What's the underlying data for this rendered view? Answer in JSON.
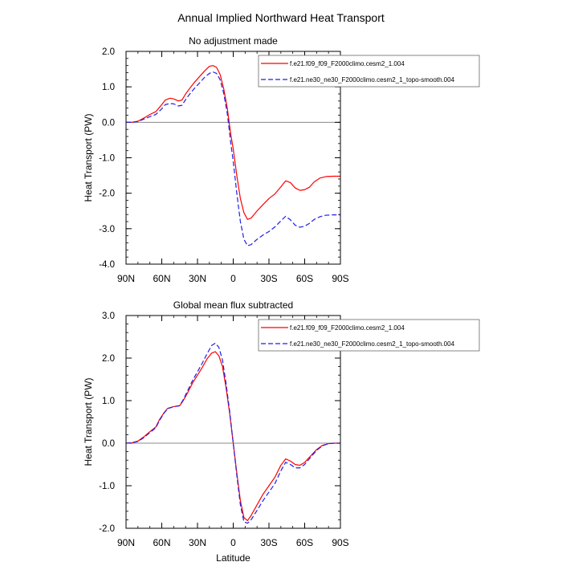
{
  "main_title": "Annual Implied Northward Heat Transport",
  "chart_data": [
    {
      "type": "line",
      "title": "No adjustment made",
      "xlabel": "",
      "ylabel": "Heat Transport (PW)",
      "xlim": [
        90,
        -90
      ],
      "ylim": [
        -4.0,
        2.0
      ],
      "xticks": [
        90,
        60,
        30,
        0,
        -30,
        -60,
        -90
      ],
      "xtick_labels": [
        "90N",
        "60N",
        "30N",
        "0",
        "30S",
        "60S",
        "90S"
      ],
      "yticks": [
        -4.0,
        -3.0,
        -2.0,
        -1.0,
        0.0,
        1.0,
        2.0
      ],
      "ytick_labels": [
        "-4.0",
        "-3.0",
        "-2.0",
        "-1.0",
        "0.0",
        "1.0",
        "2.0"
      ],
      "zero_line": true,
      "grid": false,
      "legend_position": "top-right",
      "series": [
        {
          "name": "f.e21.f09_f09_F2000climo.cesm2_1.004",
          "color": "#ff0000",
          "dash": "solid",
          "points": [
            [
              90,
              0.0
            ],
            [
              85,
              0.0
            ],
            [
              80,
              0.03
            ],
            [
              75,
              0.12
            ],
            [
              70,
              0.22
            ],
            [
              65,
              0.3
            ],
            [
              60,
              0.5
            ],
            [
              57,
              0.63
            ],
            [
              53,
              0.68
            ],
            [
              50,
              0.66
            ],
            [
              46,
              0.6
            ],
            [
              43,
              0.63
            ],
            [
              40,
              0.8
            ],
            [
              36,
              0.98
            ],
            [
              32,
              1.15
            ],
            [
              28,
              1.3
            ],
            [
              24,
              1.45
            ],
            [
              20,
              1.58
            ],
            [
              17,
              1.6
            ],
            [
              14,
              1.55
            ],
            [
              11,
              1.35
            ],
            [
              8,
              0.95
            ],
            [
              5,
              0.4
            ],
            [
              2,
              -0.35
            ],
            [
              0,
              -0.75
            ],
            [
              -3,
              -1.5
            ],
            [
              -6,
              -2.15
            ],
            [
              -9,
              -2.55
            ],
            [
              -12,
              -2.74
            ],
            [
              -15,
              -2.7
            ],
            [
              -20,
              -2.5
            ],
            [
              -25,
              -2.32
            ],
            [
              -30,
              -2.15
            ],
            [
              -35,
              -2.02
            ],
            [
              -40,
              -1.82
            ],
            [
              -44,
              -1.65
            ],
            [
              -48,
              -1.7
            ],
            [
              -52,
              -1.85
            ],
            [
              -56,
              -1.92
            ],
            [
              -60,
              -1.9
            ],
            [
              -64,
              -1.83
            ],
            [
              -68,
              -1.68
            ],
            [
              -73,
              -1.57
            ],
            [
              -78,
              -1.53
            ],
            [
              -84,
              -1.52
            ],
            [
              -90,
              -1.52
            ]
          ]
        },
        {
          "name": "f.e21.ne30_ne30_F2000climo.cesm2_1_topo-smooth.004",
          "color": "#1f1fe6",
          "dash": "dashed",
          "points": [
            [
              90,
              0.0
            ],
            [
              85,
              0.0
            ],
            [
              80,
              0.02
            ],
            [
              75,
              0.09
            ],
            [
              70,
              0.16
            ],
            [
              65,
              0.22
            ],
            [
              60,
              0.38
            ],
            [
              57,
              0.5
            ],
            [
              53,
              0.53
            ],
            [
              50,
              0.52
            ],
            [
              46,
              0.46
            ],
            [
              43,
              0.48
            ],
            [
              40,
              0.64
            ],
            [
              36,
              0.82
            ],
            [
              32,
              0.98
            ],
            [
              28,
              1.12
            ],
            [
              24,
              1.27
            ],
            [
              20,
              1.38
            ],
            [
              17,
              1.42
            ],
            [
              14,
              1.38
            ],
            [
              11,
              1.2
            ],
            [
              8,
              0.82
            ],
            [
              5,
              0.25
            ],
            [
              2,
              -0.6
            ],
            [
              0,
              -1.1
            ],
            [
              -3,
              -2.0
            ],
            [
              -6,
              -2.8
            ],
            [
              -9,
              -3.3
            ],
            [
              -12,
              -3.48
            ],
            [
              -15,
              -3.45
            ],
            [
              -20,
              -3.3
            ],
            [
              -25,
              -3.18
            ],
            [
              -30,
              -3.08
            ],
            [
              -35,
              -2.95
            ],
            [
              -40,
              -2.78
            ],
            [
              -44,
              -2.65
            ],
            [
              -48,
              -2.75
            ],
            [
              -52,
              -2.9
            ],
            [
              -56,
              -2.96
            ],
            [
              -60,
              -2.93
            ],
            [
              -64,
              -2.85
            ],
            [
              -68,
              -2.74
            ],
            [
              -73,
              -2.66
            ],
            [
              -78,
              -2.62
            ],
            [
              -84,
              -2.61
            ],
            [
              -90,
              -2.61
            ]
          ]
        }
      ]
    },
    {
      "type": "line",
      "title": "Global mean flux subtracted",
      "xlabel": "Latitude",
      "ylabel": "Heat Transport (PW)",
      "xlim": [
        90,
        -90
      ],
      "ylim": [
        -2.0,
        3.0
      ],
      "xticks": [
        90,
        60,
        30,
        0,
        -30,
        -60,
        -90
      ],
      "xtick_labels": [
        "90N",
        "60N",
        "30N",
        "0",
        "30S",
        "60S",
        "90S"
      ],
      "yticks": [
        -2.0,
        -1.0,
        0.0,
        1.0,
        2.0,
        3.0
      ],
      "ytick_labels": [
        "-2.0",
        "-1.0",
        "0.0",
        "1.0",
        "2.0",
        "3.0"
      ],
      "zero_line": true,
      "grid": false,
      "legend_position": "top-right",
      "series": [
        {
          "name": "f.e21.f09_f09_F2000climo.cesm2_1.004",
          "color": "#ff0000",
          "dash": "solid",
          "points": [
            [
              90,
              0.0
            ],
            [
              85,
              0.01
            ],
            [
              80,
              0.05
            ],
            [
              75,
              0.15
            ],
            [
              70,
              0.27
            ],
            [
              65,
              0.38
            ],
            [
              62,
              0.55
            ],
            [
              58,
              0.72
            ],
            [
              55,
              0.82
            ],
            [
              50,
              0.86
            ],
            [
              45,
              0.88
            ],
            [
              42,
              1.0
            ],
            [
              38,
              1.2
            ],
            [
              34,
              1.42
            ],
            [
              30,
              1.6
            ],
            [
              26,
              1.78
            ],
            [
              22,
              1.98
            ],
            [
              18,
              2.12
            ],
            [
              15,
              2.15
            ],
            [
              12,
              2.05
            ],
            [
              9,
              1.8
            ],
            [
              6,
              1.3
            ],
            [
              3,
              0.7
            ],
            [
              0,
              0.0
            ],
            [
              -3,
              -0.7
            ],
            [
              -6,
              -1.35
            ],
            [
              -9,
              -1.75
            ],
            [
              -12,
              -1.82
            ],
            [
              -15,
              -1.7
            ],
            [
              -20,
              -1.45
            ],
            [
              -25,
              -1.2
            ],
            [
              -30,
              -1.0
            ],
            [
              -35,
              -0.8
            ],
            [
              -40,
              -0.52
            ],
            [
              -44,
              -0.37
            ],
            [
              -48,
              -0.42
            ],
            [
              -52,
              -0.5
            ],
            [
              -56,
              -0.52
            ],
            [
              -60,
              -0.45
            ],
            [
              -65,
              -0.3
            ],
            [
              -70,
              -0.15
            ],
            [
              -75,
              -0.05
            ],
            [
              -80,
              -0.01
            ],
            [
              -85,
              0.0
            ],
            [
              -90,
              0.0
            ]
          ]
        },
        {
          "name": "f.e21.ne30_ne30_F2000climo.cesm2_1_topo-smooth.004",
          "color": "#1f1fe6",
          "dash": "dashed",
          "points": [
            [
              90,
              0.0
            ],
            [
              85,
              0.01
            ],
            [
              80,
              0.04
            ],
            [
              75,
              0.13
            ],
            [
              70,
              0.25
            ],
            [
              65,
              0.36
            ],
            [
              62,
              0.53
            ],
            [
              58,
              0.71
            ],
            [
              55,
              0.81
            ],
            [
              50,
              0.86
            ],
            [
              45,
              0.88
            ],
            [
              42,
              1.02
            ],
            [
              38,
              1.25
            ],
            [
              34,
              1.48
            ],
            [
              30,
              1.68
            ],
            [
              26,
              1.88
            ],
            [
              22,
              2.1
            ],
            [
              18,
              2.3
            ],
            [
              15,
              2.35
            ],
            [
              12,
              2.25
            ],
            [
              9,
              1.95
            ],
            [
              6,
              1.4
            ],
            [
              3,
              0.75
            ],
            [
              0,
              0.0
            ],
            [
              -3,
              -0.75
            ],
            [
              -6,
              -1.45
            ],
            [
              -9,
              -1.85
            ],
            [
              -12,
              -1.88
            ],
            [
              -15,
              -1.8
            ],
            [
              -20,
              -1.58
            ],
            [
              -25,
              -1.35
            ],
            [
              -30,
              -1.15
            ],
            [
              -35,
              -0.95
            ],
            [
              -40,
              -0.65
            ],
            [
              -44,
              -0.45
            ],
            [
              -48,
              -0.5
            ],
            [
              -52,
              -0.58
            ],
            [
              -56,
              -0.58
            ],
            [
              -60,
              -0.5
            ],
            [
              -65,
              -0.33
            ],
            [
              -70,
              -0.17
            ],
            [
              -75,
              -0.06
            ],
            [
              -80,
              -0.01
            ],
            [
              -85,
              0.0
            ],
            [
              -90,
              0.0
            ]
          ]
        }
      ]
    }
  ]
}
